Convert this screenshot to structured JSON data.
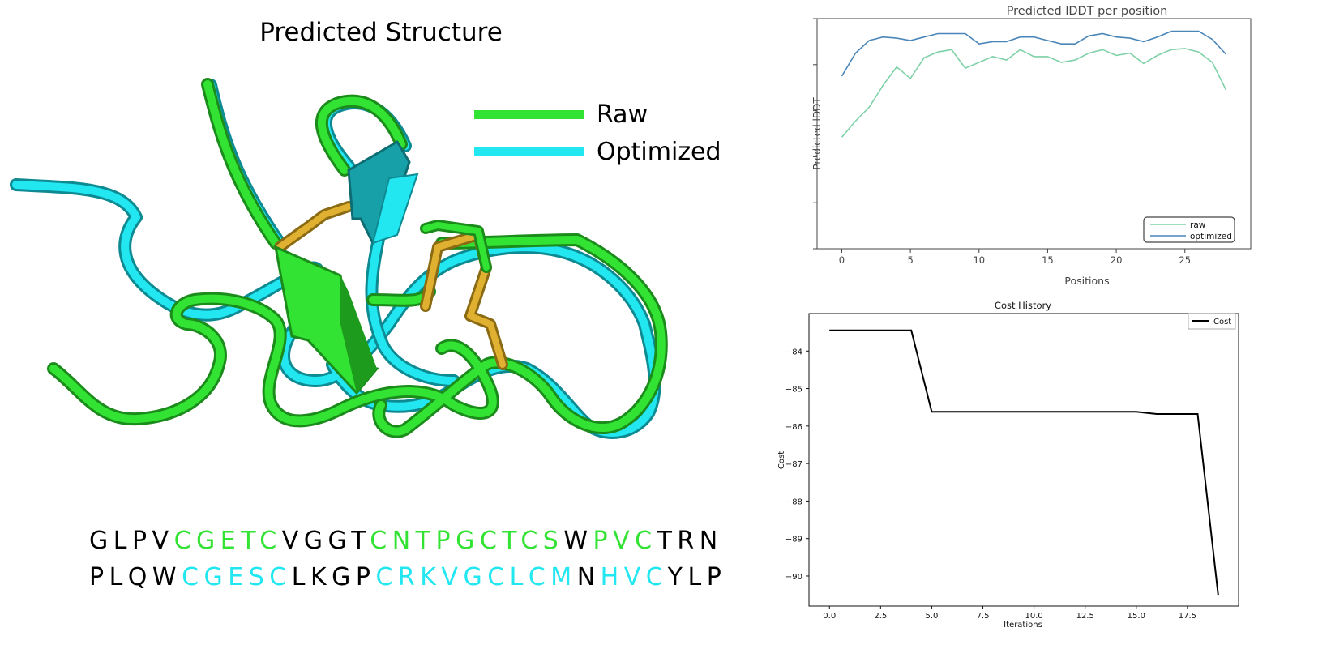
{
  "structure_panel": {
    "title": "Predicted Structure",
    "legend": [
      {
        "label": "Raw",
        "color": "#33e333"
      },
      {
        "label": "Optimized",
        "color": "#22e6f0"
      }
    ],
    "sequences": [
      {
        "name": "raw",
        "segments": [
          {
            "text": "GLPV",
            "highlight": false
          },
          {
            "text": "CGETC",
            "highlight": true
          },
          {
            "text": "VGGT",
            "highlight": false
          },
          {
            "text": "CNTPGCTCS",
            "highlight": true
          },
          {
            "text": "W",
            "highlight": false
          },
          {
            "text": "PVC",
            "highlight": true
          },
          {
            "text": "TRN",
            "highlight": false
          }
        ],
        "highlight_color": "#33e333"
      },
      {
        "name": "optimized",
        "segments": [
          {
            "text": "PLQW",
            "highlight": false
          },
          {
            "text": "CGESC",
            "highlight": true
          },
          {
            "text": "LKGP",
            "highlight": false
          },
          {
            "text": "CRKVGCLCM",
            "highlight": true
          },
          {
            "text": "N",
            "highlight": false
          },
          {
            "text": "HVC",
            "highlight": true
          },
          {
            "text": "YLP",
            "highlight": false
          }
        ],
        "highlight_color": "#22e6f0"
      }
    ]
  },
  "chart_data": [
    {
      "type": "line",
      "title": "Predicted lDDT per position",
      "xlabel": "Positions",
      "ylabel": "Predicted lDDT",
      "xlim": [
        -1.8,
        29.8
      ],
      "ylim": [
        0,
        100
      ],
      "xticks": [
        0,
        5,
        10,
        15,
        20,
        25
      ],
      "yticks": [
        0,
        20,
        40,
        60,
        80,
        100
      ],
      "legend_position": "bottom-right",
      "x": [
        0,
        1,
        2,
        3,
        4,
        5,
        6,
        7,
        8,
        9,
        10,
        11,
        12,
        13,
        14,
        15,
        16,
        17,
        18,
        19,
        20,
        21,
        22,
        23,
        24,
        25,
        26,
        27,
        28
      ],
      "series": [
        {
          "name": "raw",
          "color": "#7fd1a8",
          "values": [
            48.5,
            55.5,
            61.5,
            71,
            79,
            74,
            83,
            85.5,
            86.5,
            78.5,
            81,
            83.5,
            82,
            86.5,
            83.5,
            83.5,
            81,
            82,
            85,
            86.5,
            84,
            85,
            80.5,
            84,
            86.5,
            87,
            85.5,
            81,
            69
          ]
        },
        {
          "name": "optimized",
          "color": "#4a86b8",
          "values": [
            75,
            85,
            90.5,
            92,
            91.5,
            90.5,
            92,
            93.5,
            93.5,
            93.5,
            89,
            90,
            90,
            92,
            92,
            90.5,
            89,
            89,
            92.5,
            93.5,
            92,
            91.5,
            90,
            92,
            94.5,
            94.5,
            94.5,
            91,
            84.5
          ]
        }
      ]
    },
    {
      "type": "line",
      "title": "Cost History",
      "xlabel": "Iterations",
      "ylabel": "Cost",
      "xlim": [
        -1,
        20
      ],
      "ylim": [
        -90.8,
        -83.0
      ],
      "xticks": [
        "0.0",
        "2.5",
        "5.0",
        "7.5",
        "10.0",
        "12.5",
        "15.0",
        "17.5"
      ],
      "xtick_values": [
        0,
        2.5,
        5,
        7.5,
        10,
        12.5,
        15,
        17.5
      ],
      "yticks": [
        "−84",
        "−85",
        "−86",
        "−87",
        "−88",
        "−89",
        "−90"
      ],
      "ytick_values": [
        -84,
        -85,
        -86,
        -87,
        -88,
        -89,
        -90
      ],
      "legend_position": "top-right",
      "x": [
        0,
        1,
        2,
        3,
        4,
        5,
        6,
        7,
        8,
        9,
        10,
        11,
        12,
        13,
        14,
        15,
        16,
        17,
        18,
        19
      ],
      "series": [
        {
          "name": "Cost",
          "color": "#000000",
          "values": [
            -83.45,
            -83.45,
            -83.45,
            -83.45,
            -83.45,
            -85.62,
            -85.62,
            -85.62,
            -85.62,
            -85.62,
            -85.62,
            -85.62,
            -85.62,
            -85.62,
            -85.62,
            -85.62,
            -85.68,
            -85.68,
            -85.68,
            -90.5
          ]
        }
      ]
    }
  ]
}
